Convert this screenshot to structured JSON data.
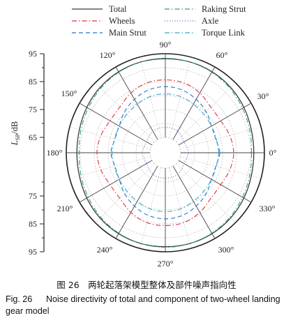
{
  "chart_data": {
    "type": "polar-line",
    "ylabel": "L_SP/dB",
    "ylabel_main": "L",
    "ylabel_sub": "SP",
    "ylabel_unit": "/dB",
    "radial_axis": {
      "inner": 65,
      "outer": 95,
      "rings": [
        65,
        70,
        75,
        80,
        85,
        90,
        95
      ],
      "ticks_top": [
        "95",
        "85",
        "75",
        "65"
      ],
      "ticks_bottom": [
        "75",
        "85",
        "95"
      ]
    },
    "angular_ticks": [
      "0°",
      "30°",
      "60°",
      "90°",
      "120°",
      "150°",
      "180°",
      "210°",
      "240°",
      "270°",
      "300°",
      "330°"
    ],
    "angles_deg": [
      0,
      15,
      30,
      45,
      60,
      75,
      90,
      105,
      120,
      135,
      150,
      165,
      180,
      195,
      210,
      225,
      240,
      255,
      270,
      285,
      300,
      315,
      330,
      345
    ],
    "legend": {
      "position": "top",
      "entries": [
        "Total",
        "Raking Strut",
        "Wheels",
        "Axle",
        "Main Strut",
        "Torque Link"
      ]
    },
    "series": [
      {
        "name": "Total",
        "color": "#3a3a3a",
        "dash": "solid",
        "values": [
          91.2,
          91.4,
          92.0,
          92.6,
          93.0,
          93.2,
          93.2,
          93.2,
          93.0,
          92.6,
          92.0,
          91.4,
          91.2,
          91.4,
          92.0,
          92.6,
          93.0,
          93.2,
          93.2,
          93.2,
          93.0,
          92.6,
          92.0,
          91.4
        ]
      },
      {
        "name": "Raking Strut",
        "color": "#2e9e88",
        "dash": "dashdot",
        "values": [
          90.4,
          90.8,
          91.4,
          92.2,
          92.8,
          93.2,
          93.4,
          93.2,
          92.8,
          92.2,
          91.4,
          90.8,
          90.4,
          90.8,
          91.4,
          92.2,
          92.8,
          93.2,
          93.4,
          93.2,
          92.8,
          92.2,
          91.4,
          90.8
        ]
      },
      {
        "name": "Wheels",
        "color": "#e0303a",
        "dash": "dashdot",
        "values": [
          84.0,
          83.4,
          82.4,
          82.6,
          84.2,
          85.4,
          85.6,
          85.4,
          84.2,
          82.6,
          82.4,
          83.4,
          84.0,
          83.4,
          82.4,
          82.6,
          84.2,
          85.4,
          85.6,
          85.4,
          84.2,
          82.6,
          82.4,
          83.4
        ]
      },
      {
        "name": "Axle",
        "color": "#6a6fc8",
        "dash": "dotted",
        "values": [
          67.8,
          67.4,
          67.2,
          67.8,
          68.4,
          68.6,
          68.6,
          68.6,
          68.4,
          67.8,
          67.2,
          67.4,
          67.8,
          67.4,
          67.2,
          67.8,
          68.4,
          68.6,
          68.6,
          68.6,
          68.4,
          67.8,
          67.2,
          67.4
        ]
      },
      {
        "name": "Main Strut",
        "color": "#2a72c4",
        "dash": "dashed",
        "values": [
          79.0,
          78.2,
          78.6,
          80.2,
          81.6,
          82.8,
          83.2,
          82.8,
          81.6,
          80.2,
          78.6,
          78.2,
          79.0,
          78.2,
          78.6,
          80.2,
          81.6,
          82.8,
          83.2,
          82.8,
          81.6,
          80.2,
          78.6,
          78.2
        ]
      },
      {
        "name": "Torque Link",
        "color": "#3aa6c8",
        "dash": "dashdot",
        "values": [
          78.6,
          78.4,
          78.6,
          79.0,
          79.6,
          80.4,
          80.6,
          80.4,
          79.6,
          79.0,
          78.6,
          78.4,
          78.6,
          78.4,
          78.6,
          79.0,
          79.6,
          80.4,
          80.6,
          80.4,
          79.6,
          79.0,
          78.6,
          78.4
        ]
      }
    ]
  },
  "caption": {
    "cn": "图 26　两轮起落架模型整体及部件噪声指向性",
    "en_no": "Fig. 26",
    "en_text": "Noise directivity of total and component of two-wheel landing gear model"
  }
}
